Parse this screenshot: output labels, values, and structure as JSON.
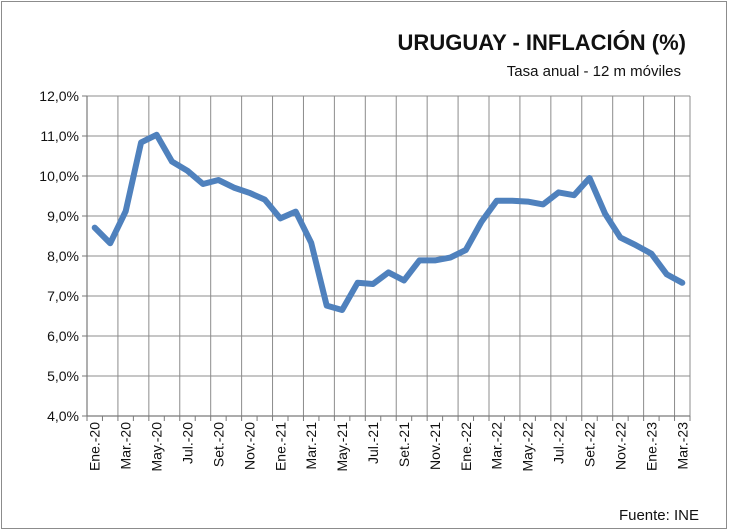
{
  "chart_data": {
    "type": "line",
    "title": "URUGUAY  - INFLACIÓN (%)",
    "subtitle": "Tasa anual - 12 m móviles",
    "source": "Fuente: INE",
    "xlabel": "",
    "ylabel": "",
    "ylim": [
      4.0,
      12.0
    ],
    "yticks": [
      "4,0%",
      "5,0%",
      "6,0%",
      "7,0%",
      "8,0%",
      "9,0%",
      "10,0%",
      "11,0%",
      "12,0%"
    ],
    "x_tick_labels": [
      "Ene.-20",
      "Mar.-20",
      "May.-20",
      "Jul.-20",
      "Set.-20",
      "Nov.-20",
      "Ene.-21",
      "Mar.-21",
      "May.-21",
      "Jul.-21",
      "Set.-21",
      "Nov.-21",
      "Ene.-22",
      "Mar.-22",
      "May.-22",
      "Jul.-22",
      "Set.-22",
      "Nov.-22",
      "Ene.-23",
      "Mar.-23"
    ],
    "grid": true,
    "line_color": "#4f81bd",
    "series": [
      {
        "values": [
          8.71,
          8.32,
          9.12,
          10.84,
          11.03,
          10.36,
          10.13,
          9.8,
          9.9,
          9.71,
          9.58,
          9.41,
          8.94,
          9.11,
          8.33,
          6.76,
          6.65,
          7.33,
          7.3,
          7.59,
          7.39,
          7.89,
          7.89,
          7.96,
          8.15,
          8.85,
          9.38,
          9.38,
          9.36,
          9.29,
          9.59,
          9.52,
          9.95,
          9.06,
          8.46,
          8.27,
          8.06,
          7.54,
          7.33
        ]
      }
    ]
  }
}
